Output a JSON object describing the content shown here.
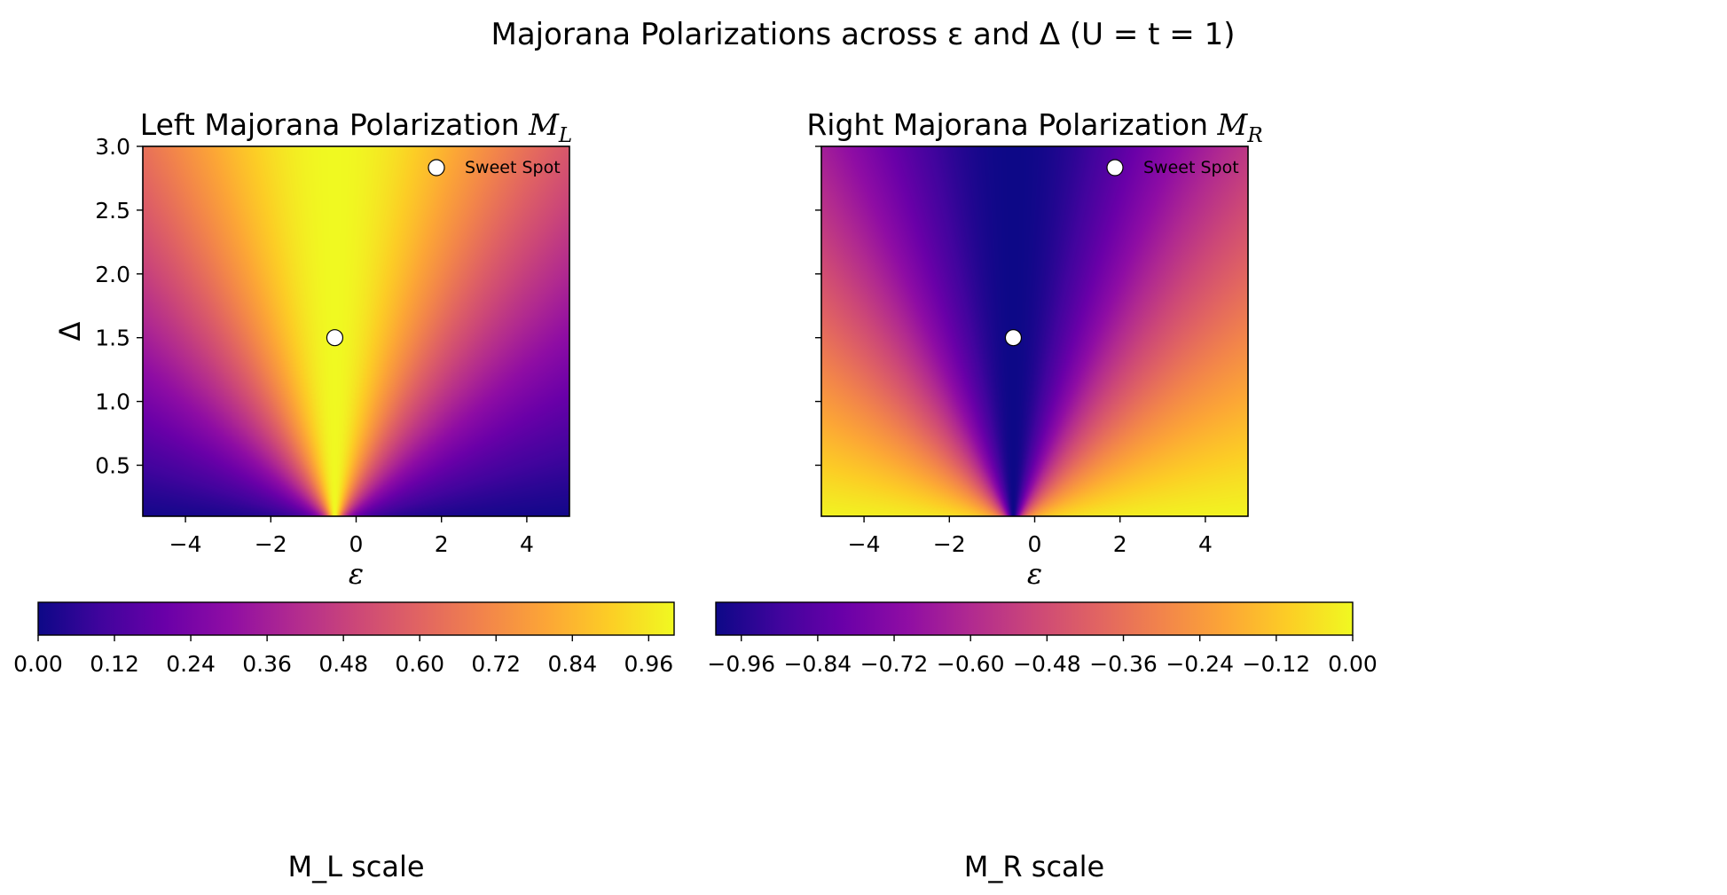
{
  "figure": {
    "suptitle": "Majorana Polarizations across ε and Δ  (U = t = 1)"
  },
  "chart_data": [
    {
      "type": "heatmap",
      "title": "Left Majorana Polarization",
      "title_symbol": "M",
      "title_subscript": "L",
      "xlabel": "ε",
      "ylabel": "Δ",
      "xlim": [
        -5,
        5
      ],
      "ylim": [
        0.1,
        3.0
      ],
      "xticks": [
        "−4",
        "−2",
        "0",
        "2",
        "4"
      ],
      "xtick_values": [
        -4,
        -2,
        0,
        2,
        4
      ],
      "yticks": [
        "0.5",
        "1.0",
        "1.5",
        "2.0",
        "2.5",
        "3.0"
      ],
      "ytick_values": [
        0.5,
        1.0,
        1.5,
        2.0,
        2.5,
        3.0
      ],
      "colormap": "plasma",
      "value_range": [
        0.0,
        1.0
      ],
      "peak_epsilon": -0.5,
      "sweet_spot": {
        "epsilon": -0.5,
        "delta": 1.5
      },
      "legend": {
        "label": "Sweet Spot",
        "position": "top-right"
      },
      "colorbar": {
        "label": "M_L scale",
        "ticks": [
          "0.00",
          "0.12",
          "0.24",
          "0.36",
          "0.48",
          "0.60",
          "0.72",
          "0.84",
          "0.96"
        ],
        "tick_values": [
          0.0,
          0.12,
          0.24,
          0.36,
          0.48,
          0.6,
          0.72,
          0.84,
          0.96
        ],
        "range": [
          0.0,
          1.0
        ]
      }
    },
    {
      "type": "heatmap",
      "title": "Right Majorana Polarization",
      "title_symbol": "M",
      "title_subscript": "R",
      "xlabel": "ε",
      "ylabel": "",
      "xlim": [
        -5,
        5
      ],
      "ylim": [
        0.1,
        3.0
      ],
      "xticks": [
        "−4",
        "−2",
        "0",
        "2",
        "4"
      ],
      "xtick_values": [
        -4,
        -2,
        0,
        2,
        4
      ],
      "colormap": "plasma",
      "value_range": [
        -1.0,
        0.0
      ],
      "peak_epsilon": -0.5,
      "sweet_spot": {
        "epsilon": -0.5,
        "delta": 1.5
      },
      "legend": {
        "label": "Sweet Spot",
        "position": "top-right"
      },
      "colorbar": {
        "label": "M_R scale",
        "ticks": [
          "−0.96",
          "−0.84",
          "−0.72",
          "−0.60",
          "−0.48",
          "−0.36",
          "−0.24",
          "−0.12",
          "0.00"
        ],
        "tick_values": [
          -0.96,
          -0.84,
          -0.72,
          -0.6,
          -0.48,
          -0.36,
          -0.24,
          -0.12,
          0.0
        ],
        "range": [
          -1.0,
          0.0
        ]
      }
    }
  ],
  "colors": {
    "plasma": [
      "#0d0887",
      "#41049d",
      "#6a00a8",
      "#8f0da4",
      "#b12a90",
      "#cc4778",
      "#e16462",
      "#f2844b",
      "#fca636",
      "#fcce25",
      "#f0f921"
    ],
    "marker_fill": "#ffffff",
    "marker_edge": "#000000"
  }
}
